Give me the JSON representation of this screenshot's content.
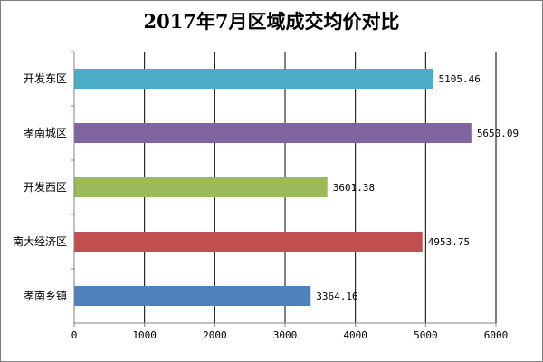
{
  "chart_data": {
    "type": "bar",
    "orientation": "horizontal",
    "title": "2017年7月区域成交均价对比",
    "xlabel": "",
    "ylabel": "",
    "categories": [
      "开发东区",
      "孝南城区",
      "开发西区",
      "南大经济区",
      "孝南乡镇"
    ],
    "values": [
      5105.46,
      5650.09,
      3601.38,
      4953.75,
      3364.16
    ],
    "value_labels": [
      "5105.46",
      "5650.09",
      "3601.38",
      "4953.75",
      "3364.16"
    ],
    "colors": [
      "#4BACC6",
      "#8064A2",
      "#9BBB59",
      "#C0504D",
      "#4F81BD"
    ],
    "xlim": [
      0,
      6000
    ],
    "xticks": [
      0,
      1000,
      2000,
      3000,
      4000,
      5000,
      6000
    ],
    "grid": "vertical",
    "legend": "none"
  }
}
